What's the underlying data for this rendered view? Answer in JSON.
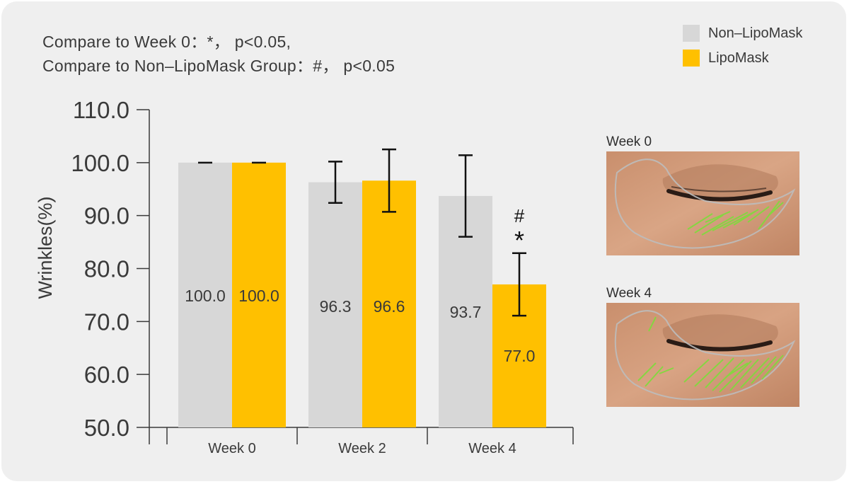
{
  "notes": {
    "line1": "Compare to Week 0：*， p<0.05,",
    "line2": "Compare to Non–LipoMask Group：#， p<0.05"
  },
  "legend": [
    {
      "name": "Non–LipoMask",
      "color": "#d7d7d7"
    },
    {
      "name": "LipoMask",
      "color": "#ffc000"
    }
  ],
  "photos": {
    "week0_label": "Week 0",
    "week4_label": "Week 4"
  },
  "chart_data": {
    "type": "bar",
    "ylabel": "Wrinkles(%)",
    "xlabel": "",
    "ylim": [
      50,
      110
    ],
    "yticks": [
      "110.0",
      "100.0",
      "90.0",
      "80.0",
      "70.0",
      "60.0",
      "50.0"
    ],
    "categories": [
      "Week 0",
      "Week 2",
      "Week 4"
    ],
    "series": [
      {
        "name": "Non–LipoMask",
        "color": "#d7d7d7",
        "values": [
          100.0,
          96.3,
          93.7
        ],
        "labels": [
          "100.0",
          "96.3",
          "93.7"
        ],
        "errors": [
          0.0,
          3.9,
          7.7
        ]
      },
      {
        "name": "LipoMask",
        "color": "#ffc000",
        "values": [
          100.0,
          96.6,
          77.0
        ],
        "labels": [
          "100.0",
          "96.6",
          "77.0"
        ],
        "errors": [
          0.0,
          5.9,
          5.9
        ]
      }
    ],
    "annotations": [
      {
        "category": "Week 4",
        "series": "LipoMask",
        "symbols": [
          "#",
          "*"
        ]
      }
    ]
  }
}
